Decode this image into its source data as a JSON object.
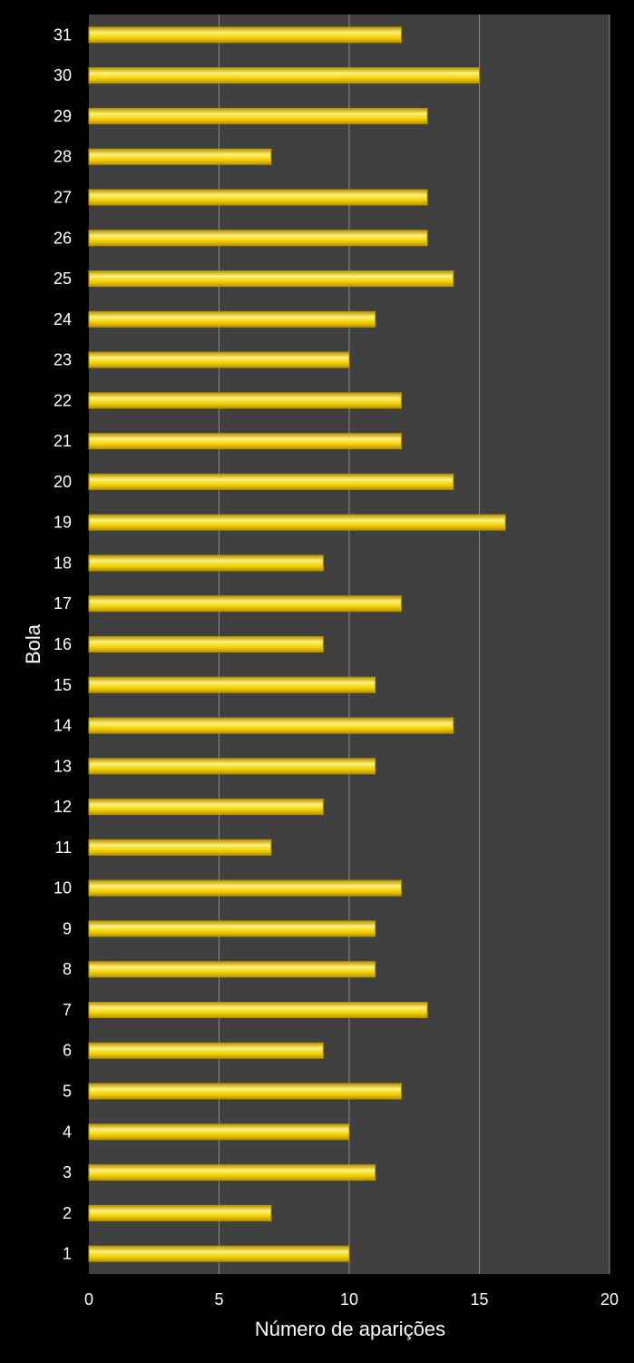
{
  "chart_data": {
    "type": "bar",
    "orientation": "horizontal",
    "title": "",
    "xlabel": "Número de aparições",
    "ylabel": "Bola",
    "categories": [
      "1",
      "2",
      "3",
      "4",
      "5",
      "6",
      "7",
      "8",
      "9",
      "10",
      "11",
      "12",
      "13",
      "14",
      "15",
      "16",
      "17",
      "18",
      "19",
      "20",
      "21",
      "22",
      "23",
      "24",
      "25",
      "26",
      "27",
      "28",
      "29",
      "30",
      "31"
    ],
    "values": [
      10,
      7,
      11,
      10,
      12,
      9,
      13,
      11,
      11,
      12,
      7,
      9,
      11,
      14,
      11,
      9,
      12,
      9,
      16,
      14,
      12,
      12,
      10,
      11,
      14,
      13,
      13,
      7,
      13,
      15,
      12
    ],
    "xlim": [
      0,
      20
    ],
    "xticks": [
      0,
      5,
      10,
      15,
      20
    ],
    "grid": "vertical",
    "legend": "none",
    "colors": {
      "background": "#000000",
      "plot_area": "#404040",
      "bar_fill": "#f2d000",
      "bar_light": "#fff27a",
      "bar_dark": "#b89400",
      "gridline": "#8a8a8a",
      "text": "#ffffff"
    }
  }
}
